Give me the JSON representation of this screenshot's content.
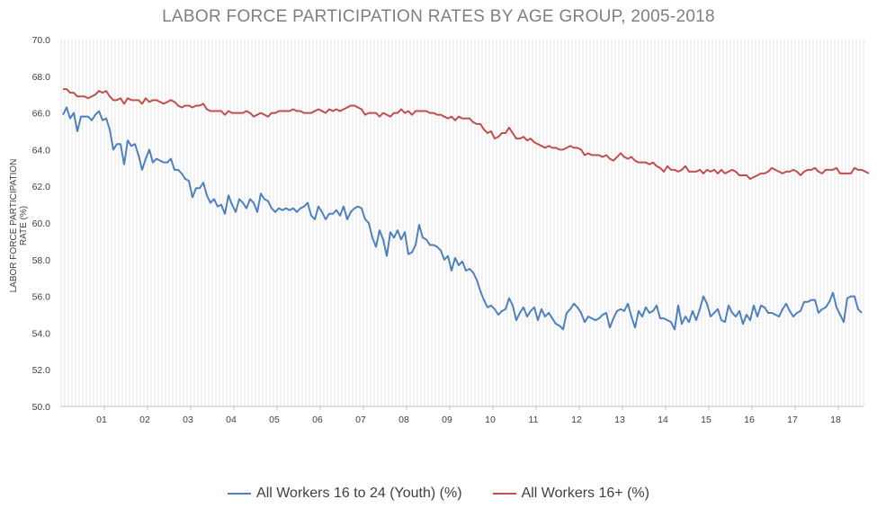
{
  "chart_data": {
    "type": "line",
    "title": "LABOR FORCE PARTICIPATION RATES BY AGE GROUP, 2005-2018",
    "ylabel": "LABOR FORCE PARTICIPATION RATE (%)",
    "xlabel": "",
    "ylim": [
      50,
      70
    ],
    "y_ticks": [
      "50.0",
      "52.0",
      "54.0",
      "56.0",
      "58.0",
      "60.0",
      "62.0",
      "64.0",
      "66.0",
      "68.0",
      "70.0"
    ],
    "x_tick_labels": [
      "01",
      "02",
      "03",
      "04",
      "05",
      "06",
      "07",
      "08",
      "09",
      "10",
      "11",
      "12",
      "13",
      "14",
      "15",
      "16",
      "17",
      "18"
    ],
    "grid": "vertical monthly lines",
    "legend_position": "bottom",
    "series": [
      {
        "name": "All Workers 16 to 24 (Youth) (%)",
        "color": "#4f81bd",
        "values": [
          65.9,
          66.3,
          65.7,
          66.0,
          65.0,
          65.8,
          65.8,
          65.8,
          65.6,
          65.9,
          66.1,
          65.6,
          65.7,
          65.1,
          64.0,
          64.3,
          64.3,
          63.2,
          64.5,
          64.2,
          64.3,
          63.7,
          62.9,
          63.5,
          64.0,
          63.3,
          63.5,
          63.4,
          63.3,
          63.3,
          63.5,
          62.9,
          62.9,
          62.7,
          62.4,
          62.3,
          61.4,
          61.9,
          61.9,
          62.2,
          61.5,
          61.1,
          61.3,
          60.9,
          61.0,
          60.5,
          61.5,
          61.0,
          60.6,
          61.3,
          61.1,
          60.8,
          61.3,
          61.1,
          60.6,
          61.6,
          61.3,
          61.2,
          60.8,
          60.6,
          60.8,
          60.7,
          60.8,
          60.7,
          60.8,
          60.6,
          60.8,
          60.9,
          61.1,
          60.4,
          60.2,
          60.9,
          60.6,
          60.2,
          60.5,
          60.5,
          60.7,
          60.4,
          60.9,
          60.2,
          60.6,
          60.8,
          60.9,
          60.8,
          60.2,
          60.0,
          59.2,
          58.7,
          59.6,
          59.1,
          58.2,
          59.5,
          59.2,
          59.6,
          59.1,
          59.5,
          58.3,
          58.4,
          58.8,
          59.9,
          59.2,
          59.1,
          58.8,
          58.8,
          58.7,
          58.5,
          58.0,
          58.2,
          57.4,
          58.1,
          57.7,
          57.9,
          57.4,
          57.5,
          57.3,
          56.9,
          56.3,
          55.8,
          55.4,
          55.5,
          55.3,
          55.0,
          55.2,
          55.3,
          55.9,
          55.5,
          54.7,
          55.1,
          55.4,
          54.9,
          55.2,
          55.4,
          54.7,
          55.3,
          54.9,
          55.1,
          54.8,
          54.5,
          54.4,
          54.2,
          55.1,
          55.3,
          55.6,
          55.4,
          55.1,
          54.6,
          54.9,
          54.8,
          54.7,
          54.8,
          55.0,
          55.1,
          54.3,
          54.8,
          55.2,
          55.3,
          55.2,
          55.6,
          54.9,
          54.3,
          55.2,
          54.9,
          55.4,
          55.1,
          55.2,
          55.5,
          54.8,
          54.8,
          54.7,
          54.6,
          54.2,
          55.5,
          54.5,
          54.9,
          54.6,
          55.2,
          54.7,
          55.3,
          56.0,
          55.6,
          54.9,
          55.1,
          55.3,
          54.7,
          54.6,
          55.5,
          55.1,
          54.9,
          55.2,
          54.5,
          55.0,
          54.7,
          55.5,
          54.9,
          55.5,
          55.4,
          55.1,
          55.1,
          55.0,
          54.9,
          55.3,
          55.6,
          55.2,
          54.9,
          55.1,
          55.2,
          55.7,
          55.7,
          55.8,
          55.8,
          55.1,
          55.3,
          55.4,
          55.7,
          56.2,
          55.4,
          55.0,
          54.6,
          55.9,
          56.0,
          56.0,
          55.3,
          55.1
        ]
      },
      {
        "name": "All Workers 16+ (%)",
        "color": "#c0504d",
        "values": [
          67.3,
          67.3,
          67.1,
          67.1,
          66.9,
          66.9,
          66.9,
          66.8,
          66.9,
          67.0,
          67.2,
          67.1,
          67.2,
          66.9,
          66.7,
          66.7,
          66.8,
          66.5,
          66.8,
          66.7,
          66.7,
          66.7,
          66.5,
          66.8,
          66.6,
          66.7,
          66.7,
          66.6,
          66.5,
          66.6,
          66.7,
          66.6,
          66.4,
          66.3,
          66.4,
          66.4,
          66.3,
          66.4,
          66.4,
          66.5,
          66.2,
          66.1,
          66.1,
          66.1,
          66.1,
          65.9,
          66.1,
          66.0,
          66.0,
          66.0,
          66.0,
          66.1,
          66.0,
          65.8,
          65.9,
          66.0,
          65.9,
          65.8,
          66.0,
          66.0,
          66.1,
          66.1,
          66.1,
          66.1,
          66.2,
          66.1,
          66.1,
          66.0,
          66.0,
          66.0,
          66.1,
          66.2,
          66.1,
          66.0,
          66.2,
          66.1,
          66.2,
          66.1,
          66.2,
          66.3,
          66.4,
          66.4,
          66.3,
          66.2,
          65.9,
          66.0,
          66.0,
          66.0,
          65.8,
          66.0,
          65.9,
          65.8,
          66.0,
          66.0,
          66.2,
          66.0,
          66.1,
          65.9,
          66.1,
          66.1,
          66.1,
          66.1,
          66.0,
          66.0,
          65.9,
          65.9,
          65.8,
          65.7,
          65.8,
          65.6,
          65.8,
          65.7,
          65.7,
          65.7,
          65.5,
          65.4,
          65.4,
          65.1,
          64.9,
          65.0,
          64.6,
          64.7,
          64.9,
          64.9,
          65.2,
          64.9,
          64.6,
          64.6,
          64.7,
          64.5,
          64.6,
          64.4,
          64.3,
          64.2,
          64.1,
          64.2,
          64.1,
          64.1,
          64.0,
          64.0,
          64.1,
          64.2,
          64.1,
          64.1,
          64.0,
          63.7,
          63.8,
          63.7,
          63.7,
          63.7,
          63.6,
          63.7,
          63.5,
          63.4,
          63.6,
          63.8,
          63.6,
          63.5,
          63.6,
          63.4,
          63.3,
          63.3,
          63.3,
          63.2,
          63.3,
          63.1,
          63.0,
          62.8,
          63.1,
          62.9,
          62.9,
          62.8,
          62.9,
          63.1,
          62.8,
          62.8,
          62.8,
          62.9,
          62.7,
          62.9,
          62.8,
          62.9,
          62.7,
          62.9,
          62.7,
          62.8,
          62.9,
          62.8,
          62.6,
          62.6,
          62.6,
          62.4,
          62.5,
          62.6,
          62.7,
          62.7,
          62.8,
          63.0,
          62.9,
          62.8,
          62.7,
          62.8,
          62.8,
          62.9,
          62.8,
          62.6,
          62.8,
          62.9,
          62.9,
          63.0,
          62.8,
          62.7,
          62.9,
          62.9,
          62.9,
          63.0,
          62.7,
          62.7,
          62.7,
          62.7,
          63.0,
          62.9,
          62.9,
          62.8,
          62.7
        ]
      }
    ]
  }
}
